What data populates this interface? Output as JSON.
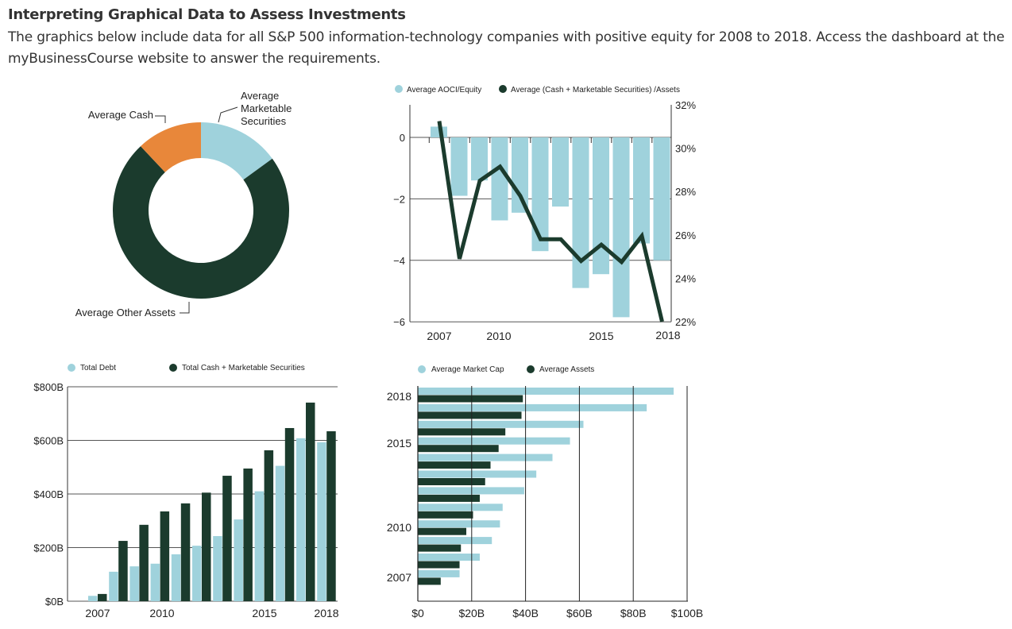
{
  "header": {
    "title": "Interpreting Graphical Data to Assess Investments",
    "intro": "The graphics below include data for all S&P 500 information-technology companies with positive equity for 2008 to 2018. Access the dashboard at the myBusinessCourse website to answer the requirements."
  },
  "colors": {
    "light": "#9fd2dc",
    "dark": "#1b3b2d",
    "orange": "#e8873a"
  },
  "chart_data": [
    {
      "type": "pie",
      "donut": true,
      "labels": [
        "Average Marketable Securities",
        "Average Other Assets",
        "Average Cash"
      ],
      "label_lines": [
        [
          "Average",
          "Marketable",
          "Securities"
        ],
        [
          "Average Other Assets"
        ],
        [
          "Average Cash"
        ]
      ],
      "values": [
        15,
        73,
        12
      ],
      "colors": [
        "#9fd2dc",
        "#1b3b2d",
        "#e8873a"
      ]
    },
    {
      "type": "bar+line",
      "legend": [
        "Average AOCI/Equity",
        "Average (Cash + Marketable Securities) /Assets"
      ],
      "x": [
        2007,
        2008,
        2009,
        2010,
        2011,
        2012,
        2013,
        2014,
        2015,
        2016,
        2017,
        2018
      ],
      "x_tick_labels": [
        "2007",
        "2010",
        "2015",
        "2018"
      ],
      "bars": {
        "name": "Average AOCI/Equity",
        "values": [
          0.35,
          -1.9,
          -1.4,
          -2.7,
          -2.45,
          -3.7,
          -2.25,
          -4.9,
          -4.45,
          -5.85,
          -3.45,
          -4.0
        ]
      },
      "line": {
        "name": "Average (Cash + Marketable Securities) /Assets",
        "values": [
          31.25,
          24.9,
          28.5,
          29.15,
          27.8,
          25.8,
          25.8,
          24.8,
          25.55,
          24.75,
          25.95,
          22.0
        ]
      },
      "ylim_left": [
        -6,
        1
      ],
      "yticks_left": [
        "0",
        "−2",
        "−4",
        "−6"
      ],
      "ylim_right": [
        22,
        32
      ],
      "yticks_right": [
        "32%",
        "30%",
        "28%",
        "26%",
        "24%",
        "22%"
      ],
      "legend_position": "top"
    },
    {
      "type": "bar",
      "legend": [
        "Total Debt",
        "Total Cash + Marketable Securities"
      ],
      "categories": [
        2007,
        2008,
        2009,
        2010,
        2011,
        2012,
        2013,
        2014,
        2015,
        2016,
        2017,
        2018
      ],
      "x_tick_labels": [
        "2007",
        "2010",
        "2015",
        "2018"
      ],
      "series": [
        {
          "name": "Total Debt",
          "values": [
            20,
            110,
            130,
            140,
            175,
            207,
            243,
            305,
            410,
            505,
            608,
            593
          ]
        },
        {
          "name": "Total Cash + Marketable Securities",
          "values": [
            27,
            225,
            285,
            335,
            365,
            405,
            468,
            495,
            563,
            646,
            741,
            634
          ]
        }
      ],
      "ylim": [
        0,
        800
      ],
      "yticks": [
        "$0B",
        "$200B",
        "$400B",
        "$600B",
        "$800B"
      ],
      "unit": "$B",
      "legend_position": "top"
    },
    {
      "type": "bar",
      "orientation": "horizontal",
      "legend": [
        "Average Market Cap",
        "Average Assets"
      ],
      "categories": [
        2018,
        2017,
        2016,
        2015,
        2014,
        2013,
        2012,
        2011,
        2010,
        2009,
        2008,
        2007
      ],
      "y_tick_labels": [
        "2018",
        "2015",
        "2010",
        "2007"
      ],
      "series": [
        {
          "name": "Average Market Cap",
          "values": [
            95,
            85,
            61.5,
            56.5,
            50,
            44,
            39.5,
            31.5,
            30.5,
            27.5,
            23,
            15.5
          ]
        },
        {
          "name": "Average Assets",
          "values": [
            39,
            38.5,
            32.5,
            30,
            27,
            25,
            23,
            20.5,
            18,
            16,
            15.5,
            8.5
          ]
        }
      ],
      "xlim": [
        0,
        100
      ],
      "xticks": [
        "$0",
        "$20B",
        "$40B",
        "$60B",
        "$80B",
        "$100B"
      ],
      "unit": "$B",
      "legend_position": "top"
    }
  ]
}
